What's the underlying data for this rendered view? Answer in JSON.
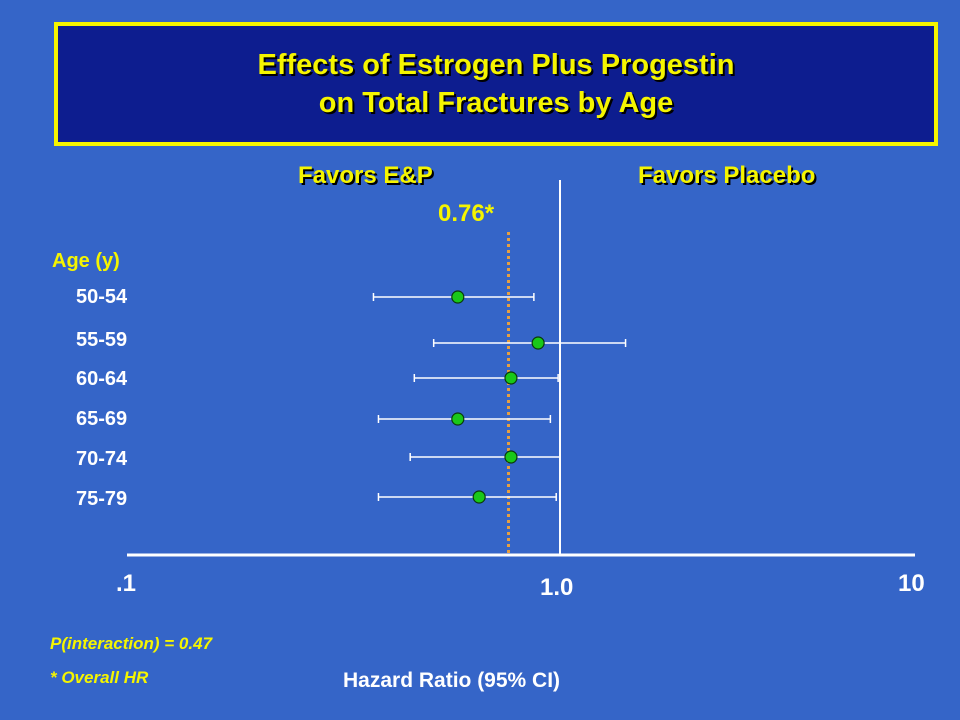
{
  "title": {
    "line1": "Effects of Estrogen Plus Progestin",
    "line2": "on Total Fractures by Age"
  },
  "colors": {
    "background": "#3565c8",
    "title_box": "#0d1d8f",
    "accent_yellow": "#f5f500",
    "point": "#19c819",
    "reference_line": "#ffffff",
    "overall_line": "#e8a040"
  },
  "chart_data": {
    "type": "forest",
    "favors_left": "Favors E&P",
    "favors_right": "Favors Placebo",
    "overall_hr": 0.76,
    "overall_label": "0.76*",
    "row_heading": "Age (y)",
    "categories": [
      "50-54",
      "55-59",
      "60-64",
      "65-69",
      "70-74",
      "75-79"
    ],
    "hr": [
      0.58,
      0.89,
      0.77,
      0.58,
      0.77,
      0.65
    ],
    "ci_lower": [
      0.37,
      0.51,
      0.46,
      0.38,
      0.45,
      0.38
    ],
    "ci_upper": [
      0.87,
      1.53,
      0.99,
      0.95,
      1.0,
      0.98
    ],
    "x_scale": "log",
    "xlim": [
      0.1,
      10
    ],
    "x_ticks": [
      ".1",
      "1.0",
      "10"
    ],
    "xlabel": "Hazard Ratio (95% CI)"
  },
  "notes": {
    "p_interaction": "P(interaction) = 0.47",
    "footnote": "* Overall HR"
  }
}
